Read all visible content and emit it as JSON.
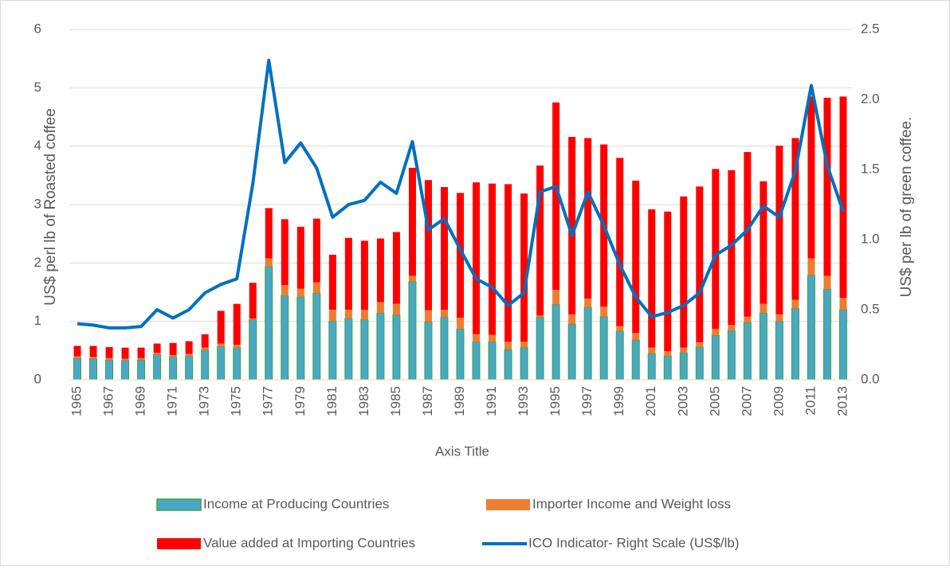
{
  "chart_data": {
    "type": "bar",
    "xlabel": "Axis Title",
    "ylabel": "US$ perl lb of Roasted coffee",
    "y2label": "US$ per lb of green coffee.",
    "categories": [
      "1965",
      null,
      "1967",
      null,
      "1969",
      null,
      "1971",
      null,
      "1973",
      null,
      "1975",
      null,
      "1977",
      null,
      "1979",
      null,
      "1981",
      null,
      "1983",
      null,
      "1985",
      null,
      "1987",
      null,
      "1989",
      null,
      "1991",
      null,
      "1993",
      null,
      "1995",
      null,
      "1997",
      null,
      "1999",
      null,
      "2001",
      null,
      "2003",
      null,
      "2005",
      null,
      "2007",
      null,
      "2009",
      null,
      "2011",
      null,
      "2013"
    ],
    "ylim": [
      0,
      6
    ],
    "yticks": [
      0,
      1,
      2,
      3,
      4,
      5,
      6
    ],
    "y2lim": [
      0,
      2.5
    ],
    "y2ticks": [
      {
        "value": 0,
        "label": "0.0"
      },
      0.5,
      {
        "value": 1,
        "label": "1.0"
      },
      1.5,
      {
        "value": 2,
        "label": "2.0"
      },
      2.5
    ],
    "grid": true,
    "legend": "bottom",
    "stacked": true,
    "series": [
      {
        "name": "Income at Producing Countries",
        "color": "#4aa8c4",
        "edge": "#3ea23e",
        "values": [
          0.37,
          0.36,
          0.34,
          0.33,
          0.34,
          0.43,
          0.39,
          0.41,
          0.51,
          0.57,
          0.55,
          1.03,
          1.94,
          1.44,
          1.42,
          1.48,
          1.0,
          1.05,
          1.03,
          1.14,
          1.11,
          1.68,
          0.99,
          1.07,
          0.87,
          0.65,
          0.65,
          0.52,
          0.55,
          1.07,
          1.29,
          0.95,
          1.24,
          1.08,
          0.83,
          0.68,
          0.45,
          0.41,
          0.46,
          0.56,
          0.76,
          0.84,
          0.98,
          1.14,
          1.0,
          1.22,
          1.79,
          1.55,
          1.2
        ]
      },
      {
        "name": "Importer Income and Weight loss",
        "color": "#ed7d31",
        "values": [
          0.03,
          0.03,
          0.03,
          0.03,
          0.03,
          0.03,
          0.03,
          0.03,
          0.04,
          0.05,
          0.05,
          0.02,
          0.14,
          0.18,
          0.14,
          0.19,
          0.2,
          0.15,
          0.17,
          0.19,
          0.19,
          0.1,
          0.2,
          0.13,
          0.19,
          0.13,
          0.12,
          0.13,
          0.1,
          0.03,
          0.25,
          0.17,
          0.15,
          0.17,
          0.09,
          0.12,
          0.1,
          0.08,
          0.09,
          0.08,
          0.11,
          0.1,
          0.1,
          0.16,
          0.12,
          0.15,
          0.29,
          0.23,
          0.2
        ]
      },
      {
        "name": "Value added at Importing Countries",
        "color": "#ff0000",
        "values": [
          0.18,
          0.19,
          0.19,
          0.19,
          0.18,
          0.16,
          0.21,
          0.22,
          0.23,
          0.56,
          0.7,
          0.61,
          0.86,
          1.13,
          1.06,
          1.09,
          0.94,
          1.23,
          1.18,
          1.09,
          1.23,
          1.85,
          2.23,
          2.1,
          2.14,
          2.6,
          2.59,
          2.7,
          2.54,
          2.57,
          3.21,
          3.04,
          2.75,
          2.78,
          2.88,
          2.61,
          2.37,
          2.39,
          2.59,
          2.67,
          2.74,
          2.65,
          2.82,
          2.1,
          2.89,
          2.77,
          2.77,
          3.05,
          3.45
        ]
      },
      {
        "name": "ICO Indicator- Right Scale (US$/lb)",
        "color": "#0070c0",
        "type": "line",
        "axis": "y2",
        "values": [
          0.4,
          0.39,
          0.37,
          0.37,
          0.38,
          0.5,
          0.44,
          0.5,
          0.62,
          0.68,
          0.72,
          1.4,
          2.28,
          1.55,
          1.69,
          1.51,
          1.16,
          1.25,
          1.28,
          1.41,
          1.33,
          1.7,
          1.07,
          1.15,
          0.93,
          0.72,
          0.66,
          0.53,
          0.62,
          1.34,
          1.38,
          1.03,
          1.34,
          1.1,
          0.82,
          0.59,
          0.45,
          0.48,
          0.53,
          0.62,
          0.89,
          0.96,
          1.07,
          1.24,
          1.16,
          1.49,
          2.1,
          1.53,
          1.2
        ]
      }
    ]
  }
}
